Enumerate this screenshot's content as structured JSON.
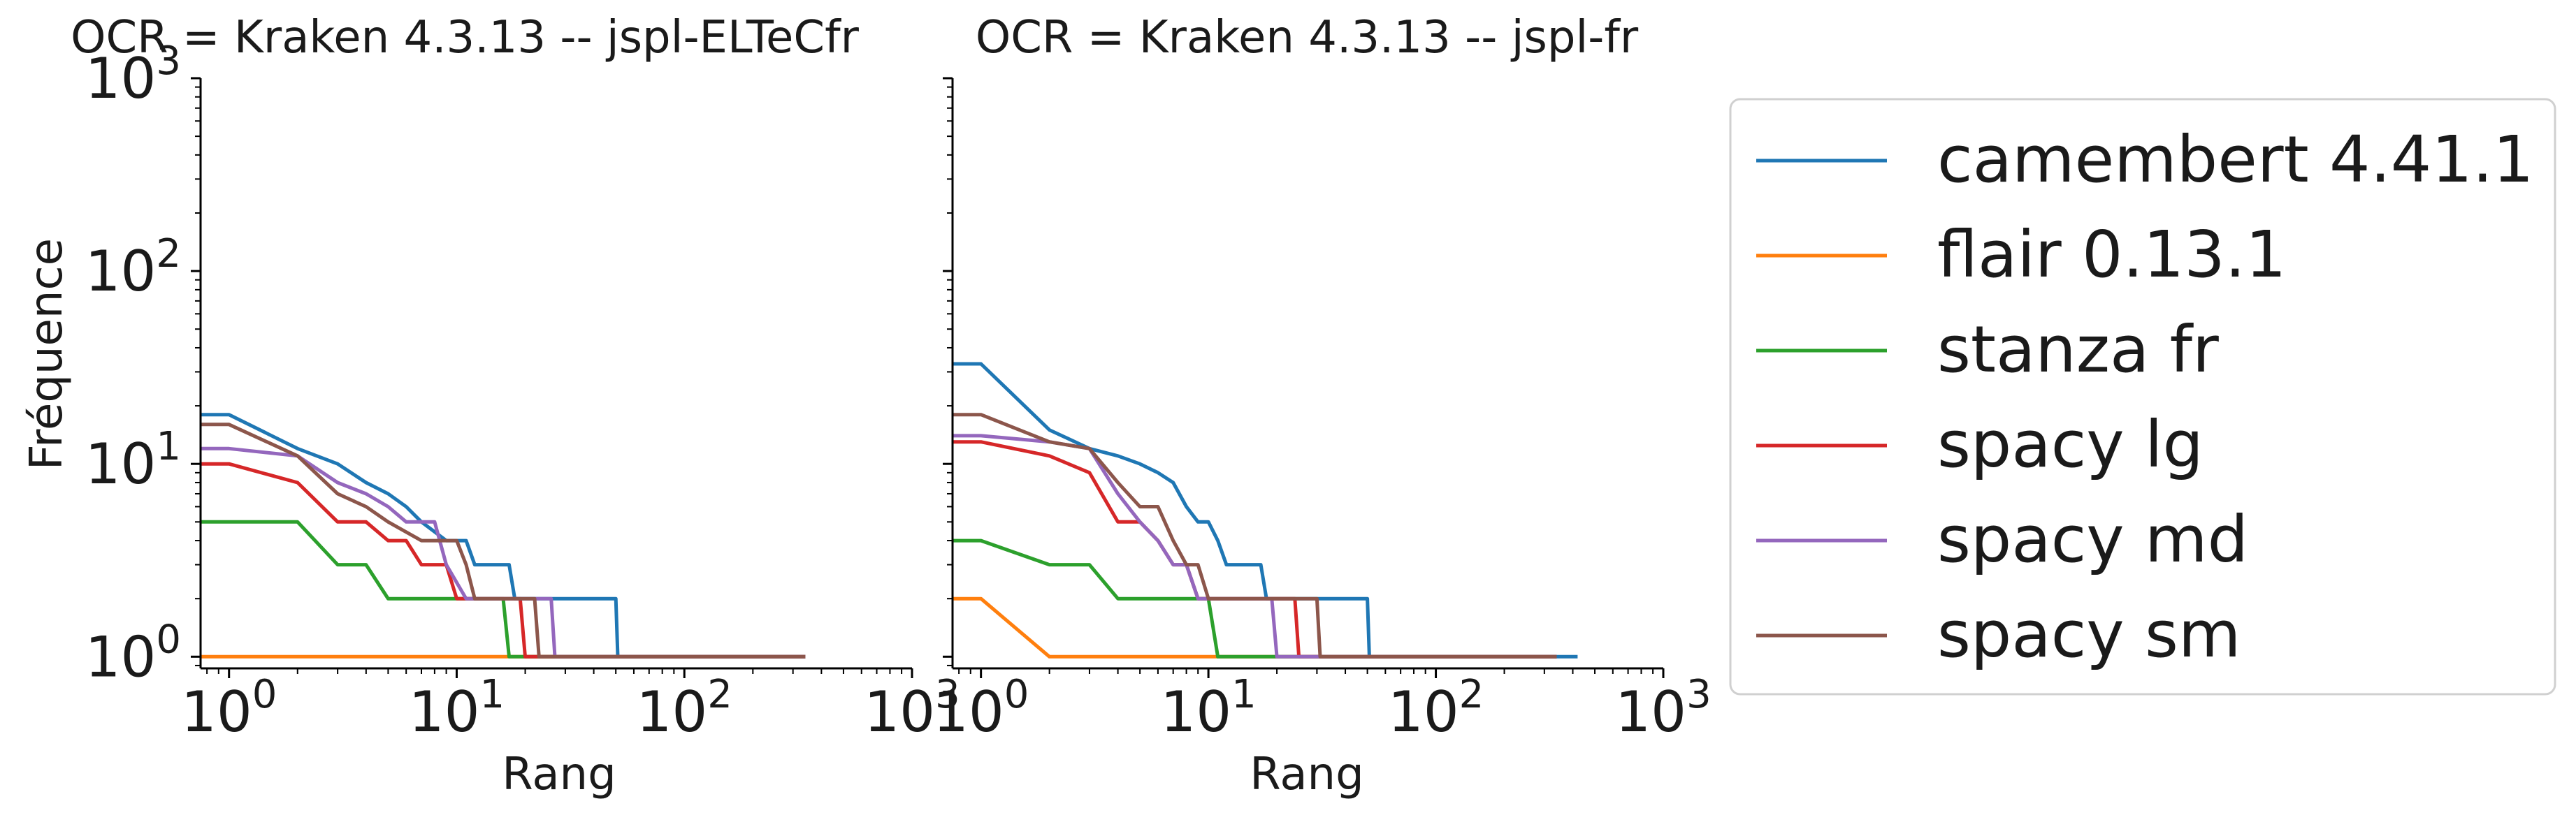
{
  "chart_data": [
    {
      "type": "line",
      "title": "OCR = Kraken 4.3.13 -- jspl-ELTeCfr",
      "xlabel": "Rang",
      "ylabel": "Fréquence",
      "xscale": "log",
      "yscale": "log",
      "xlim": [
        0.75,
        1000
      ],
      "ylim": [
        0.87,
        1000
      ],
      "xticks": [
        "10^0",
        "10^1",
        "10^2",
        "10^3"
      ],
      "yticks": [
        "10^0",
        "10^1",
        "10^2",
        "10^3"
      ],
      "grid": false,
      "series": [
        {
          "name": "camembert 4.41.1",
          "color": "#1f77b4",
          "points": [
            [
              0.75,
              18
            ],
            [
              1,
              18
            ],
            [
              2,
              12
            ],
            [
              3,
              10
            ],
            [
              4,
              8
            ],
            [
              5,
              7
            ],
            [
              6,
              6
            ],
            [
              7,
              5
            ],
            [
              9,
              4
            ],
            [
              11,
              4
            ],
            [
              12,
              3
            ],
            [
              17,
              3
            ],
            [
              18,
              2
            ],
            [
              50,
              2
            ],
            [
              51,
              1
            ],
            [
              340,
              1
            ]
          ]
        },
        {
          "name": "flair 0.13.1",
          "color": "#ff7f0e",
          "points": [
            [
              0.75,
              1
            ],
            [
              340,
              1
            ]
          ]
        },
        {
          "name": "stanza fr",
          "color": "#2ca02c",
          "points": [
            [
              0.75,
              5
            ],
            [
              2,
              5
            ],
            [
              3,
              3
            ],
            [
              4,
              3
            ],
            [
              5,
              2
            ],
            [
              16,
              2
            ],
            [
              17,
              1
            ],
            [
              340,
              1
            ]
          ]
        },
        {
          "name": "spacy lg",
          "color": "#d62728",
          "points": [
            [
              0.75,
              10
            ],
            [
              1,
              10
            ],
            [
              2,
              8
            ],
            [
              3,
              5
            ],
            [
              4,
              5
            ],
            [
              5,
              4
            ],
            [
              6,
              4
            ],
            [
              7,
              3
            ],
            [
              9,
              3
            ],
            [
              10,
              2
            ],
            [
              19,
              2
            ],
            [
              20,
              1
            ],
            [
              340,
              1
            ]
          ]
        },
        {
          "name": "spacy md",
          "color": "#9467bd",
          "points": [
            [
              0.75,
              12
            ],
            [
              1,
              12
            ],
            [
              2,
              11
            ],
            [
              3,
              8
            ],
            [
              4,
              7
            ],
            [
              5,
              6
            ],
            [
              6,
              5
            ],
            [
              8,
              5
            ],
            [
              9,
              3
            ],
            [
              11,
              2
            ],
            [
              26,
              2
            ],
            [
              27,
              1
            ],
            [
              340,
              1
            ]
          ]
        },
        {
          "name": "spacy sm",
          "color": "#8c564b",
          "points": [
            [
              0.75,
              16
            ],
            [
              1,
              16
            ],
            [
              2,
              11
            ],
            [
              3,
              7
            ],
            [
              4,
              6
            ],
            [
              5,
              5
            ],
            [
              7,
              4
            ],
            [
              10,
              4
            ],
            [
              11,
              3
            ],
            [
              12,
              2
            ],
            [
              22,
              2
            ],
            [
              23,
              1
            ],
            [
              340,
              1
            ]
          ]
        }
      ]
    },
    {
      "type": "line",
      "title": "OCR = Kraken 4.3.13 -- jspl-fr",
      "xlabel": "Rang",
      "ylabel": "",
      "xscale": "log",
      "yscale": "log",
      "xlim": [
        0.75,
        1000
      ],
      "ylim": [
        0.87,
        1000
      ],
      "xticks": [
        "10^0",
        "10^1",
        "10^2",
        "10^3"
      ],
      "grid": false,
      "series": [
        {
          "name": "camembert 4.41.1",
          "color": "#1f77b4",
          "points": [
            [
              0.75,
              33
            ],
            [
              1,
              33
            ],
            [
              2,
              15
            ],
            [
              3,
              12
            ],
            [
              4,
              11
            ],
            [
              5,
              10
            ],
            [
              6,
              9
            ],
            [
              7,
              8
            ],
            [
              8,
              6
            ],
            [
              9,
              5
            ],
            [
              10,
              5
            ],
            [
              11,
              4
            ],
            [
              12,
              3
            ],
            [
              17,
              3
            ],
            [
              18,
              2
            ],
            [
              50,
              2
            ],
            [
              51,
              1
            ],
            [
              420,
              1
            ]
          ]
        },
        {
          "name": "flair 0.13.1",
          "color": "#ff7f0e",
          "points": [
            [
              0.75,
              2
            ],
            [
              1,
              2
            ],
            [
              2,
              1
            ],
            [
              340,
              1
            ]
          ]
        },
        {
          "name": "stanza fr",
          "color": "#2ca02c",
          "points": [
            [
              0.75,
              4
            ],
            [
              1,
              4
            ],
            [
              2,
              3
            ],
            [
              3,
              3
            ],
            [
              4,
              2
            ],
            [
              10,
              2
            ],
            [
              11,
              1
            ],
            [
              340,
              1
            ]
          ]
        },
        {
          "name": "spacy lg",
          "color": "#d62728",
          "points": [
            [
              0.75,
              13
            ],
            [
              1,
              13
            ],
            [
              2,
              11
            ],
            [
              3,
              9
            ],
            [
              4,
              5
            ],
            [
              5,
              5
            ],
            [
              6,
              4
            ],
            [
              7,
              3
            ],
            [
              8,
              3
            ],
            [
              9,
              2
            ],
            [
              24,
              2
            ],
            [
              25,
              1
            ],
            [
              340,
              1
            ]
          ]
        },
        {
          "name": "spacy md",
          "color": "#9467bd",
          "points": [
            [
              0.75,
              14
            ],
            [
              1,
              14
            ],
            [
              2,
              13
            ],
            [
              3,
              12
            ],
            [
              4,
              7
            ],
            [
              5,
              5
            ],
            [
              6,
              4
            ],
            [
              7,
              3
            ],
            [
              8,
              3
            ],
            [
              9,
              2
            ],
            [
              19,
              2
            ],
            [
              20,
              1
            ],
            [
              340,
              1
            ]
          ]
        },
        {
          "name": "spacy sm",
          "color": "#8c564b",
          "points": [
            [
              0.75,
              18
            ],
            [
              1,
              18
            ],
            [
              2,
              13
            ],
            [
              3,
              12
            ],
            [
              4,
              8
            ],
            [
              5,
              6
            ],
            [
              6,
              6
            ],
            [
              7,
              4
            ],
            [
              8,
              3
            ],
            [
              9,
              3
            ],
            [
              10,
              2
            ],
            [
              30,
              2
            ],
            [
              31,
              1
            ],
            [
              340,
              1
            ]
          ]
        }
      ]
    }
  ],
  "legend": {
    "position": "right",
    "entries": [
      {
        "label": "camembert 4.41.1",
        "color": "#1f77b4"
      },
      {
        "label": "flair 0.13.1",
        "color": "#ff7f0e"
      },
      {
        "label": "stanza fr",
        "color": "#2ca02c"
      },
      {
        "label": "spacy lg",
        "color": "#d62728"
      },
      {
        "label": "spacy md",
        "color": "#9467bd"
      },
      {
        "label": "spacy sm",
        "color": "#8c564b"
      }
    ]
  }
}
